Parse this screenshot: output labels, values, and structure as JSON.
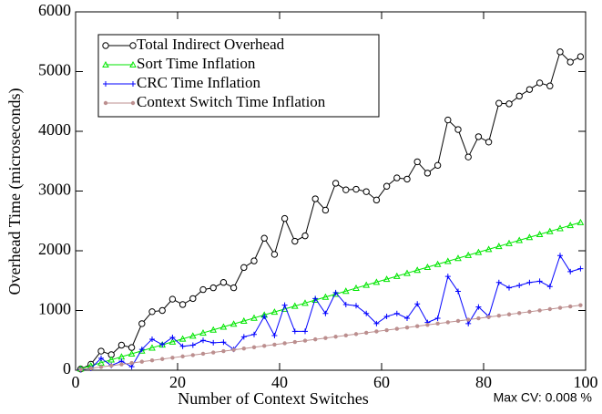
{
  "chart_data": {
    "type": "line",
    "xlabel": "Number of Context Switches",
    "ylabel": "Overhead Time (microseconds)",
    "annotation": "Max CV: 0.008 %",
    "xlim": [
      0,
      100
    ],
    "xticks": [
      0,
      20,
      40,
      60,
      80,
      100
    ],
    "ylim": [
      0,
      6000
    ],
    "yticks": [
      0,
      1000,
      2000,
      3000,
      4000,
      5000,
      6000
    ],
    "legend": "upper left",
    "x": [
      1,
      3,
      5,
      7,
      9,
      11,
      13,
      15,
      17,
      19,
      21,
      23,
      25,
      27,
      29,
      31,
      33,
      35,
      37,
      39,
      41,
      43,
      45,
      47,
      49,
      51,
      53,
      55,
      57,
      59,
      61,
      63,
      65,
      67,
      69,
      71,
      73,
      75,
      77,
      79,
      81,
      83,
      85,
      87,
      89,
      91,
      93,
      95,
      97,
      99
    ],
    "series": [
      {
        "name": "Total Indirect Overhead",
        "color": "#000000",
        "marker": "circle",
        "values": [
          20,
          100,
          320,
          260,
          420,
          380,
          780,
          980,
          1000,
          1190,
          1100,
          1200,
          1350,
          1380,
          1470,
          1380,
          1720,
          1830,
          2210,
          1940,
          2540,
          2160,
          2250,
          2870,
          2680,
          3130,
          3020,
          3030,
          2990,
          2850,
          3080,
          3220,
          3200,
          3490,
          3300,
          3430,
          4190,
          4030,
          3570,
          3910,
          3820,
          4470,
          4460,
          4590,
          4700,
          4810,
          4760,
          5330,
          5160,
          5250
        ]
      },
      {
        "name": "Sort Time Inflation",
        "color": "#00e600",
        "marker": "triangle",
        "values": [
          25,
          75,
          125,
          175,
          225,
          275,
          325,
          375,
          425,
          475,
          525,
          575,
          625,
          675,
          725,
          775,
          825,
          875,
          925,
          975,
          1025,
          1075,
          1125,
          1175,
          1225,
          1275,
          1325,
          1375,
          1425,
          1475,
          1525,
          1575,
          1625,
          1675,
          1725,
          1775,
          1825,
          1875,
          1925,
          1975,
          2025,
          2075,
          2125,
          2175,
          2225,
          2275,
          2325,
          2375,
          2425,
          2475
        ]
      },
      {
        "name": "CRC Time Inflation",
        "color": "#0000ff",
        "marker": "plus",
        "values": [
          10,
          30,
          200,
          80,
          150,
          60,
          350,
          520,
          430,
          550,
          400,
          420,
          500,
          460,
          470,
          350,
          560,
          600,
          900,
          580,
          1090,
          650,
          650,
          1200,
          950,
          1300,
          1100,
          1080,
          950,
          780,
          900,
          950,
          870,
          1110,
          800,
          870,
          1570,
          1320,
          780,
          1060,
          900,
          1470,
          1380,
          1420,
          1470,
          1490,
          1400,
          1920,
          1650,
          1700
        ]
      },
      {
        "name": "Context Switch Time Inflation",
        "color": "#bc8f8f",
        "marker": "dot",
        "values": [
          11,
          33,
          55,
          77,
          99,
          121,
          143,
          165,
          187,
          209,
          231,
          253,
          275,
          297,
          319,
          341,
          363,
          385,
          407,
          429,
          451,
          473,
          495,
          517,
          539,
          561,
          583,
          605,
          627,
          649,
          671,
          693,
          715,
          737,
          759,
          781,
          803,
          825,
          847,
          869,
          891,
          913,
          935,
          957,
          979,
          1001,
          1023,
          1045,
          1067,
          1089
        ]
      }
    ]
  }
}
